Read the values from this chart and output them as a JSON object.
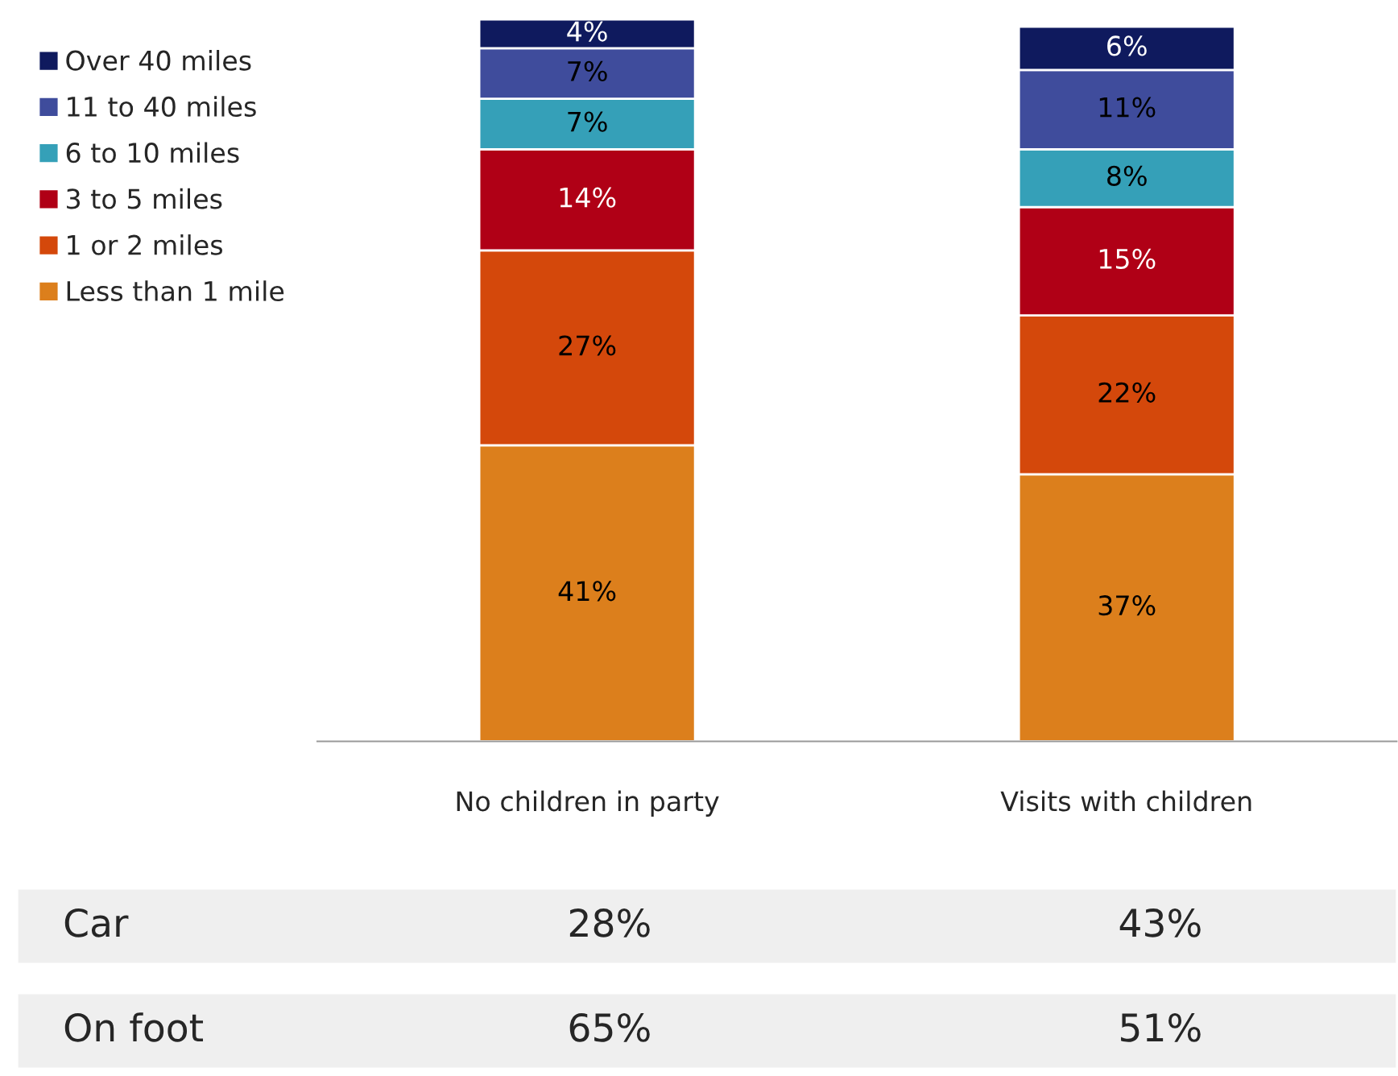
{
  "chart_data": {
    "type": "bar",
    "stacked": true,
    "legend": "left",
    "grid": false,
    "categories": [
      "No children in party",
      "Visits with children"
    ],
    "series": [
      {
        "name": "Less than 1 mile",
        "color": "#dc7f1c",
        "values": [
          41,
          37
        ],
        "value_labels": [
          "41%",
          "37%"
        ]
      },
      {
        "name": "1 or 2 miles",
        "color": "#d4480b",
        "values": [
          27,
          22
        ],
        "value_labels": [
          "27%",
          "22%"
        ]
      },
      {
        "name": "3 to 5 miles",
        "color": "#b00016",
        "values": [
          14,
          15
        ],
        "value_labels": [
          "14%",
          "15%"
        ]
      },
      {
        "name": "6 to 10 miles",
        "color": "#35a0b8",
        "values": [
          7,
          8
        ],
        "value_labels": [
          "7%",
          "8%"
        ]
      },
      {
        "name": "11 to 40 miles",
        "color": "#3f4c9c",
        "values": [
          7,
          11
        ],
        "value_labels": [
          "7%",
          "11%"
        ]
      },
      {
        "name": "Over 40 miles",
        "color": "#0f1a5e",
        "values": [
          4,
          6
        ],
        "value_labels": [
          "4%",
          "6%"
        ]
      }
    ],
    "annotations": [
      "Car",
      "28%",
      "43%",
      "On foot",
      "65%",
      "51%"
    ]
  }
}
